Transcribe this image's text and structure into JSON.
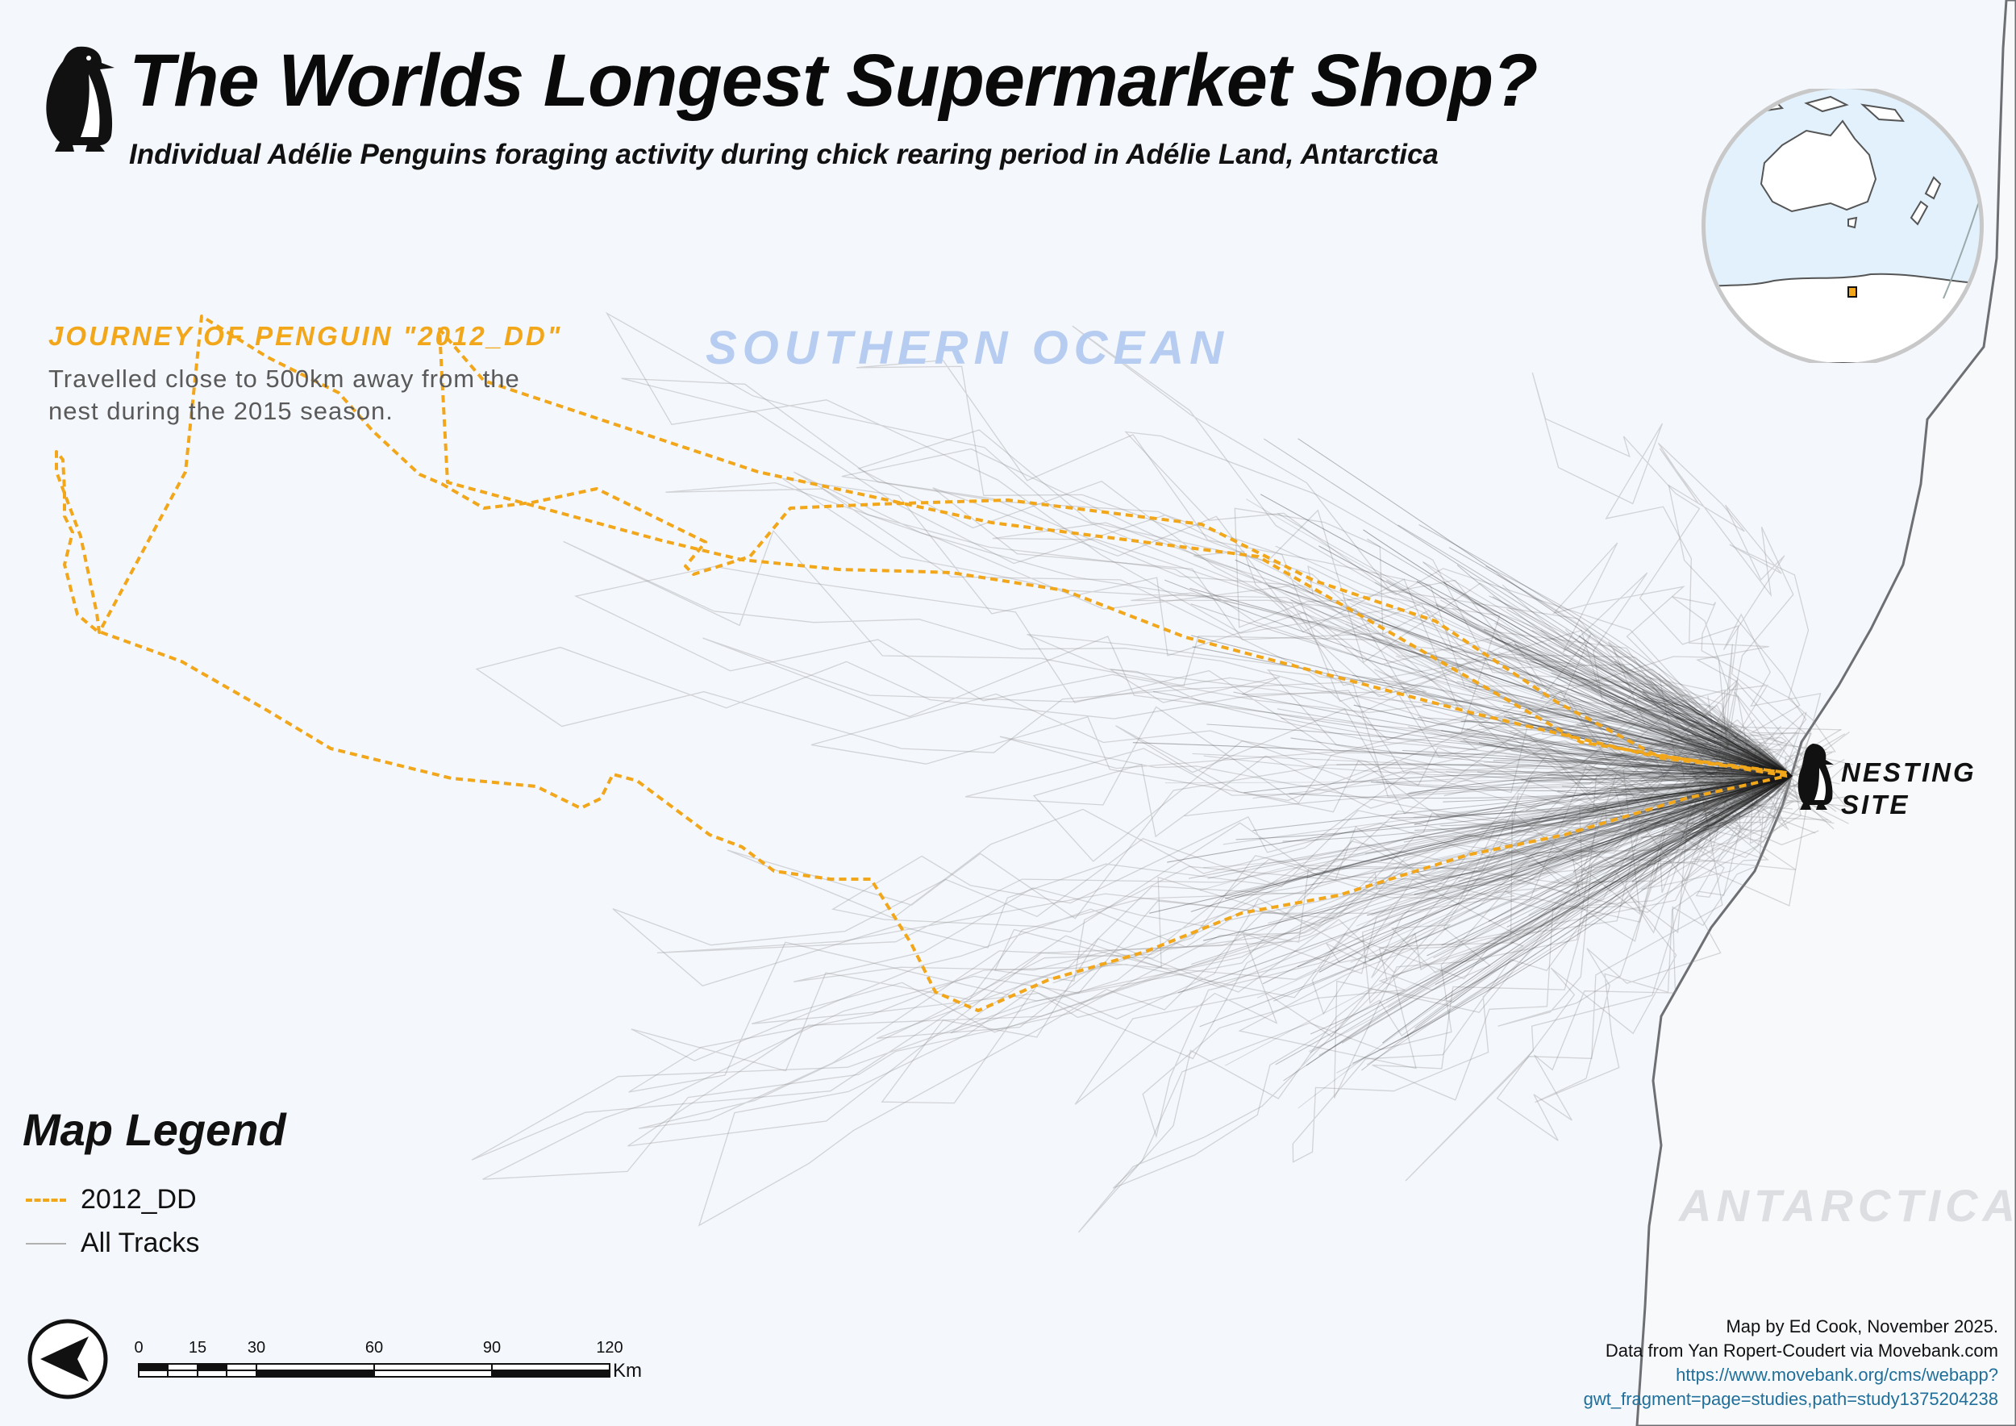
{
  "title": "The Worlds Longest Supermarket Shop?",
  "subtitle": "Individual Adélie Penguins foraging activity during chick rearing period in Adélie Land,  Antarctica",
  "annotation": {
    "heading": "JOURNEY OF PENGUIN \"2012_DD\"",
    "text": "Travelled close to 500km away from the nest during the 2015 season."
  },
  "labels": {
    "ocean": "SOUTHERN OCEAN",
    "land": "ANTARCTICA",
    "nesting_line1": "NESTING",
    "nesting_line2": "SITE"
  },
  "legend": {
    "title": "Map Legend",
    "items": [
      {
        "label": "2012_DD",
        "color": "#f2a71b",
        "style": "dashed"
      },
      {
        "label": "All Tracks",
        "color": "#b0b0b0",
        "style": "solid"
      }
    ]
  },
  "scale_bar": {
    "ticks": [
      "0",
      "15",
      "30",
      "60",
      "90",
      "120"
    ],
    "unit": "Km"
  },
  "credits": {
    "line1": "Map by Ed Cook, November 2025.",
    "line2": "Data from Yan Ropert-Coudert via Movebank.com",
    "link1": "https://www.movebank.org/cms/webapp?",
    "link2": "gwt_fragment=page=studies,path=study1375204238"
  },
  "colors": {
    "highlight_track": "#f2a71b",
    "tracks": "#1a1a1a",
    "ocean_label": "#b6ccf0",
    "background": "#f4f7fc"
  },
  "icons": [
    "penguin-icon",
    "north-arrow-icon"
  ]
}
